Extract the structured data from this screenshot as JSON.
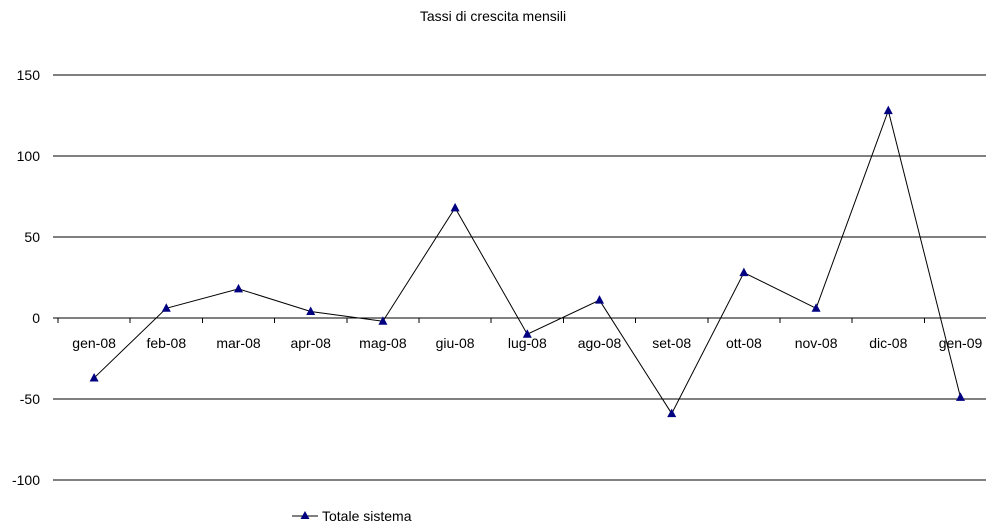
{
  "chart_data": {
    "type": "line",
    "title": "Tassi di crescita mensili",
    "categories": [
      "gen-08",
      "feb-08",
      "mar-08",
      "apr-08",
      "mag-08",
      "giu-08",
      "lug-08",
      "ago-08",
      "set-08",
      "ott-08",
      "nov-08",
      "dic-08",
      "gen-09"
    ],
    "series": [
      {
        "name": "Totale sistema",
        "values": [
          -37,
          6,
          18,
          4,
          -2,
          68,
          -10,
          11,
          -59,
          28,
          6,
          128,
          -49
        ],
        "color": "#000080",
        "line_color": "#000000",
        "marker": "triangle"
      }
    ],
    "ylim": [
      -100,
      150
    ],
    "yticks": [
      -100,
      -50,
      0,
      50,
      100,
      150
    ],
    "xlabel": "",
    "ylabel": "",
    "grid": true,
    "legend": "bottom"
  }
}
